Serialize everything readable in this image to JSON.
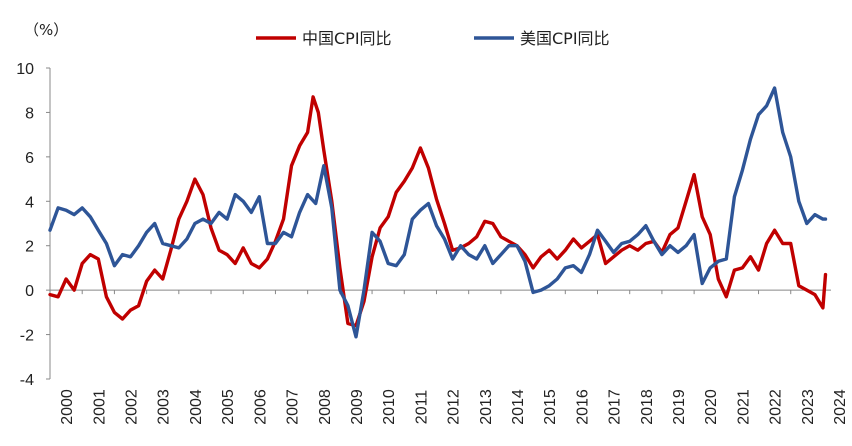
{
  "chart_data": {
    "type": "line",
    "unit_label": "（%）",
    "ylim": [
      -4,
      10
    ],
    "yticks": [
      -4,
      -2,
      0,
      2,
      4,
      6,
      8,
      10
    ],
    "xlim": [
      2000,
      2024.25
    ],
    "xtick_labels": [
      "2000",
      "2001",
      "2002",
      "2003",
      "2004",
      "2005",
      "2006",
      "2007",
      "2008",
      "2009",
      "2010",
      "2011",
      "2012",
      "2013",
      "2014",
      "2015",
      "2016",
      "2017",
      "2018",
      "2019",
      "2020",
      "2021",
      "2022",
      "2023",
      "2024"
    ],
    "legend_position": "top-center",
    "grid": false,
    "series": [
      {
        "name": "中国CPI同比",
        "color": "#C00000",
        "points": [
          [
            2000.0,
            -0.2
          ],
          [
            2000.25,
            -0.3
          ],
          [
            2000.5,
            0.5
          ],
          [
            2000.75,
            0.0
          ],
          [
            2001.0,
            1.2
          ],
          [
            2001.25,
            1.6
          ],
          [
            2001.5,
            1.4
          ],
          [
            2001.75,
            -0.3
          ],
          [
            2002.0,
            -1.0
          ],
          [
            2002.25,
            -1.3
          ],
          [
            2002.5,
            -0.9
          ],
          [
            2002.75,
            -0.7
          ],
          [
            2003.0,
            0.4
          ],
          [
            2003.25,
            0.9
          ],
          [
            2003.5,
            0.5
          ],
          [
            2003.75,
            1.8
          ],
          [
            2004.0,
            3.2
          ],
          [
            2004.25,
            4.0
          ],
          [
            2004.5,
            5.0
          ],
          [
            2004.75,
            4.3
          ],
          [
            2005.0,
            2.8
          ],
          [
            2005.25,
            1.8
          ],
          [
            2005.5,
            1.6
          ],
          [
            2005.75,
            1.2
          ],
          [
            2006.0,
            1.9
          ],
          [
            2006.25,
            1.2
          ],
          [
            2006.5,
            1.0
          ],
          [
            2006.75,
            1.4
          ],
          [
            2007.0,
            2.2
          ],
          [
            2007.25,
            3.2
          ],
          [
            2007.5,
            5.6
          ],
          [
            2007.75,
            6.5
          ],
          [
            2008.0,
            7.1
          ],
          [
            2008.17,
            8.7
          ],
          [
            2008.33,
            8.0
          ],
          [
            2008.5,
            6.3
          ],
          [
            2008.75,
            4.0
          ],
          [
            2009.0,
            1.0
          ],
          [
            2009.25,
            -1.5
          ],
          [
            2009.5,
            -1.6
          ],
          [
            2009.75,
            -0.5
          ],
          [
            2010.0,
            1.5
          ],
          [
            2010.25,
            2.8
          ],
          [
            2010.5,
            3.3
          ],
          [
            2010.75,
            4.4
          ],
          [
            2011.0,
            4.9
          ],
          [
            2011.25,
            5.5
          ],
          [
            2011.5,
            6.4
          ],
          [
            2011.75,
            5.5
          ],
          [
            2012.0,
            4.1
          ],
          [
            2012.25,
            3.0
          ],
          [
            2012.5,
            1.8
          ],
          [
            2012.75,
            1.9
          ],
          [
            2013.0,
            2.1
          ],
          [
            2013.25,
            2.4
          ],
          [
            2013.5,
            3.1
          ],
          [
            2013.75,
            3.0
          ],
          [
            2014.0,
            2.4
          ],
          [
            2014.25,
            2.2
          ],
          [
            2014.5,
            2.0
          ],
          [
            2014.75,
            1.6
          ],
          [
            2015.0,
            1.0
          ],
          [
            2015.25,
            1.5
          ],
          [
            2015.5,
            1.8
          ],
          [
            2015.75,
            1.4
          ],
          [
            2016.0,
            1.8
          ],
          [
            2016.25,
            2.3
          ],
          [
            2016.5,
            1.9
          ],
          [
            2016.75,
            2.2
          ],
          [
            2017.0,
            2.5
          ],
          [
            2017.25,
            1.2
          ],
          [
            2017.5,
            1.5
          ],
          [
            2017.75,
            1.8
          ],
          [
            2018.0,
            2.0
          ],
          [
            2018.25,
            1.8
          ],
          [
            2018.5,
            2.1
          ],
          [
            2018.75,
            2.2
          ],
          [
            2019.0,
            1.7
          ],
          [
            2019.25,
            2.5
          ],
          [
            2019.5,
            2.8
          ],
          [
            2019.75,
            4.0
          ],
          [
            2020.0,
            5.2
          ],
          [
            2020.25,
            3.3
          ],
          [
            2020.5,
            2.5
          ],
          [
            2020.75,
            0.5
          ],
          [
            2021.0,
            -0.3
          ],
          [
            2021.25,
            0.9
          ],
          [
            2021.5,
            1.0
          ],
          [
            2021.75,
            1.5
          ],
          [
            2022.0,
            0.9
          ],
          [
            2022.25,
            2.1
          ],
          [
            2022.5,
            2.7
          ],
          [
            2022.75,
            2.1
          ],
          [
            2023.0,
            2.1
          ],
          [
            2023.25,
            0.2
          ],
          [
            2023.5,
            0.0
          ],
          [
            2023.75,
            -0.2
          ],
          [
            2024.0,
            -0.8
          ],
          [
            2024.08,
            0.7
          ]
        ]
      },
      {
        "name": "美国CPI同比",
        "color": "#2E5597",
        "points": [
          [
            2000.0,
            2.7
          ],
          [
            2000.25,
            3.7
          ],
          [
            2000.5,
            3.6
          ],
          [
            2000.75,
            3.4
          ],
          [
            2001.0,
            3.7
          ],
          [
            2001.25,
            3.3
          ],
          [
            2001.5,
            2.7
          ],
          [
            2001.75,
            2.1
          ],
          [
            2002.0,
            1.1
          ],
          [
            2002.25,
            1.6
          ],
          [
            2002.5,
            1.5
          ],
          [
            2002.75,
            2.0
          ],
          [
            2003.0,
            2.6
          ],
          [
            2003.25,
            3.0
          ],
          [
            2003.5,
            2.1
          ],
          [
            2003.75,
            2.0
          ],
          [
            2004.0,
            1.9
          ],
          [
            2004.25,
            2.3
          ],
          [
            2004.5,
            3.0
          ],
          [
            2004.75,
            3.2
          ],
          [
            2005.0,
            3.0
          ],
          [
            2005.25,
            3.5
          ],
          [
            2005.5,
            3.2
          ],
          [
            2005.75,
            4.3
          ],
          [
            2006.0,
            4.0
          ],
          [
            2006.25,
            3.5
          ],
          [
            2006.5,
            4.2
          ],
          [
            2006.75,
            2.1
          ],
          [
            2007.0,
            2.1
          ],
          [
            2007.25,
            2.6
          ],
          [
            2007.5,
            2.4
          ],
          [
            2007.75,
            3.5
          ],
          [
            2008.0,
            4.3
          ],
          [
            2008.25,
            3.9
          ],
          [
            2008.5,
            5.6
          ],
          [
            2008.75,
            3.7
          ],
          [
            2009.0,
            0.0
          ],
          [
            2009.25,
            -0.7
          ],
          [
            2009.5,
            -2.1
          ],
          [
            2009.75,
            0.0
          ],
          [
            2010.0,
            2.6
          ],
          [
            2010.25,
            2.2
          ],
          [
            2010.5,
            1.2
          ],
          [
            2010.75,
            1.1
          ],
          [
            2011.0,
            1.6
          ],
          [
            2011.25,
            3.2
          ],
          [
            2011.5,
            3.6
          ],
          [
            2011.75,
            3.9
          ],
          [
            2012.0,
            2.9
          ],
          [
            2012.25,
            2.3
          ],
          [
            2012.5,
            1.4
          ],
          [
            2012.75,
            2.0
          ],
          [
            2013.0,
            1.6
          ],
          [
            2013.25,
            1.4
          ],
          [
            2013.5,
            2.0
          ],
          [
            2013.75,
            1.2
          ],
          [
            2014.0,
            1.6
          ],
          [
            2014.25,
            2.0
          ],
          [
            2014.5,
            2.0
          ],
          [
            2014.75,
            1.3
          ],
          [
            2015.0,
            -0.1
          ],
          [
            2015.25,
            0.0
          ],
          [
            2015.5,
            0.2
          ],
          [
            2015.75,
            0.5
          ],
          [
            2016.0,
            1.0
          ],
          [
            2016.25,
            1.1
          ],
          [
            2016.5,
            0.8
          ],
          [
            2016.75,
            1.6
          ],
          [
            2017.0,
            2.7
          ],
          [
            2017.25,
            2.2
          ],
          [
            2017.5,
            1.7
          ],
          [
            2017.75,
            2.1
          ],
          [
            2018.0,
            2.2
          ],
          [
            2018.25,
            2.5
          ],
          [
            2018.5,
            2.9
          ],
          [
            2018.75,
            2.2
          ],
          [
            2019.0,
            1.6
          ],
          [
            2019.25,
            2.0
          ],
          [
            2019.5,
            1.7
          ],
          [
            2019.75,
            2.0
          ],
          [
            2020.0,
            2.5
          ],
          [
            2020.25,
            0.3
          ],
          [
            2020.5,
            1.0
          ],
          [
            2020.75,
            1.3
          ],
          [
            2021.0,
            1.4
          ],
          [
            2021.25,
            4.2
          ],
          [
            2021.5,
            5.4
          ],
          [
            2021.75,
            6.8
          ],
          [
            2022.0,
            7.9
          ],
          [
            2022.25,
            8.3
          ],
          [
            2022.5,
            9.1
          ],
          [
            2022.75,
            7.1
          ],
          [
            2023.0,
            6.0
          ],
          [
            2023.25,
            4.0
          ],
          [
            2023.5,
            3.0
          ],
          [
            2023.75,
            3.4
          ],
          [
            2024.0,
            3.2
          ],
          [
            2024.08,
            3.2
          ]
        ]
      }
    ]
  }
}
